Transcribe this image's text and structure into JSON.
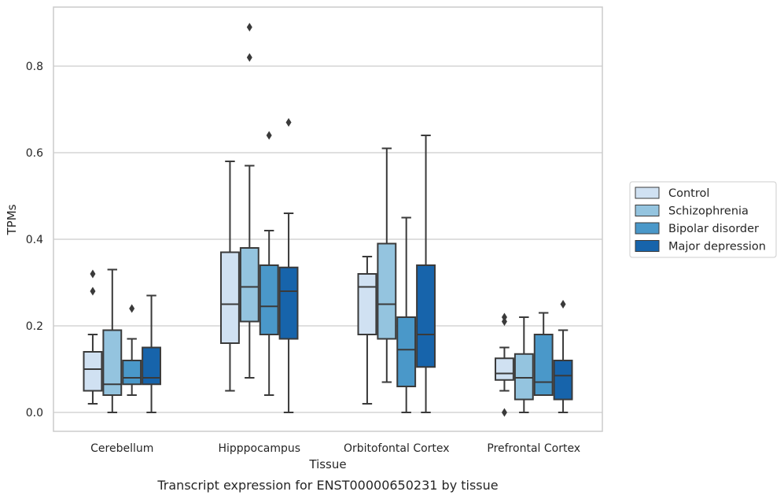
{
  "chart_data": {
    "type": "boxplot",
    "caption": "Transcript expression for ENST00000650231 by tissue",
    "xlabel": "Tissue",
    "ylabel": "TPMs",
    "ylim": [
      -0.04,
      0.94
    ],
    "yticks": [
      0.0,
      0.2,
      0.4,
      0.6,
      0.8
    ],
    "ytick_labels": [
      "0.0",
      "0.2",
      "0.4",
      "0.6",
      "0.8"
    ],
    "grid": "horizontal",
    "legend_position": "right",
    "categories": [
      "Cerebellum",
      "Hipppocampus",
      "Orbitofontal Cortex",
      "Prefrontal Cortex"
    ],
    "series": [
      {
        "name": "Control",
        "color": "#d0e1f2",
        "boxes": [
          {
            "whislo": 0.02,
            "q1": 0.05,
            "med": 0.1,
            "q3": 0.14,
            "whishi": 0.18,
            "fliers": [
              0.28,
              0.32
            ]
          },
          {
            "whislo": 0.05,
            "q1": 0.16,
            "med": 0.25,
            "q3": 0.37,
            "whishi": 0.58,
            "fliers": []
          },
          {
            "whislo": 0.02,
            "q1": 0.18,
            "med": 0.29,
            "q3": 0.32,
            "whishi": 0.36,
            "fliers": []
          },
          {
            "whislo": 0.05,
            "q1": 0.075,
            "med": 0.09,
            "q3": 0.125,
            "whishi": 0.15,
            "fliers": [
              0.0,
              0.21,
              0.22
            ]
          }
        ]
      },
      {
        "name": "Schizophrenia",
        "color": "#94c4df",
        "boxes": [
          {
            "whislo": 0.0,
            "q1": 0.04,
            "med": 0.065,
            "q3": 0.19,
            "whishi": 0.33,
            "fliers": []
          },
          {
            "whislo": 0.08,
            "q1": 0.21,
            "med": 0.29,
            "q3": 0.38,
            "whishi": 0.57,
            "fliers": [
              0.82,
              0.89
            ]
          },
          {
            "whislo": 0.07,
            "q1": 0.17,
            "med": 0.25,
            "q3": 0.39,
            "whishi": 0.61,
            "fliers": []
          },
          {
            "whislo": 0.0,
            "q1": 0.03,
            "med": 0.08,
            "q3": 0.135,
            "whishi": 0.22,
            "fliers": []
          }
        ]
      },
      {
        "name": "Bipolar disorder",
        "color": "#4a98c9",
        "boxes": [
          {
            "whislo": 0.04,
            "q1": 0.065,
            "med": 0.08,
            "q3": 0.12,
            "whishi": 0.17,
            "fliers": [
              0.24
            ]
          },
          {
            "whislo": 0.04,
            "q1": 0.18,
            "med": 0.245,
            "q3": 0.34,
            "whishi": 0.42,
            "fliers": [
              0.64
            ]
          },
          {
            "whislo": 0.0,
            "q1": 0.06,
            "med": 0.145,
            "q3": 0.22,
            "whishi": 0.45,
            "fliers": []
          },
          {
            "whislo": 0.04,
            "q1": 0.04,
            "med": 0.07,
            "q3": 0.18,
            "whishi": 0.23,
            "fliers": []
          }
        ]
      },
      {
        "name": "Major depression",
        "color": "#1764ab",
        "boxes": [
          {
            "whislo": 0.0,
            "q1": 0.065,
            "med": 0.08,
            "q3": 0.15,
            "whishi": 0.27,
            "fliers": []
          },
          {
            "whislo": 0.0,
            "q1": 0.17,
            "med": 0.28,
            "q3": 0.335,
            "whishi": 0.46,
            "fliers": [
              0.67
            ]
          },
          {
            "whislo": 0.0,
            "q1": 0.105,
            "med": 0.18,
            "q3": 0.34,
            "whishi": 0.64,
            "fliers": []
          },
          {
            "whislo": 0.0,
            "q1": 0.03,
            "med": 0.085,
            "q3": 0.12,
            "whishi": 0.19,
            "fliers": [
              0.25
            ]
          }
        ]
      }
    ]
  }
}
